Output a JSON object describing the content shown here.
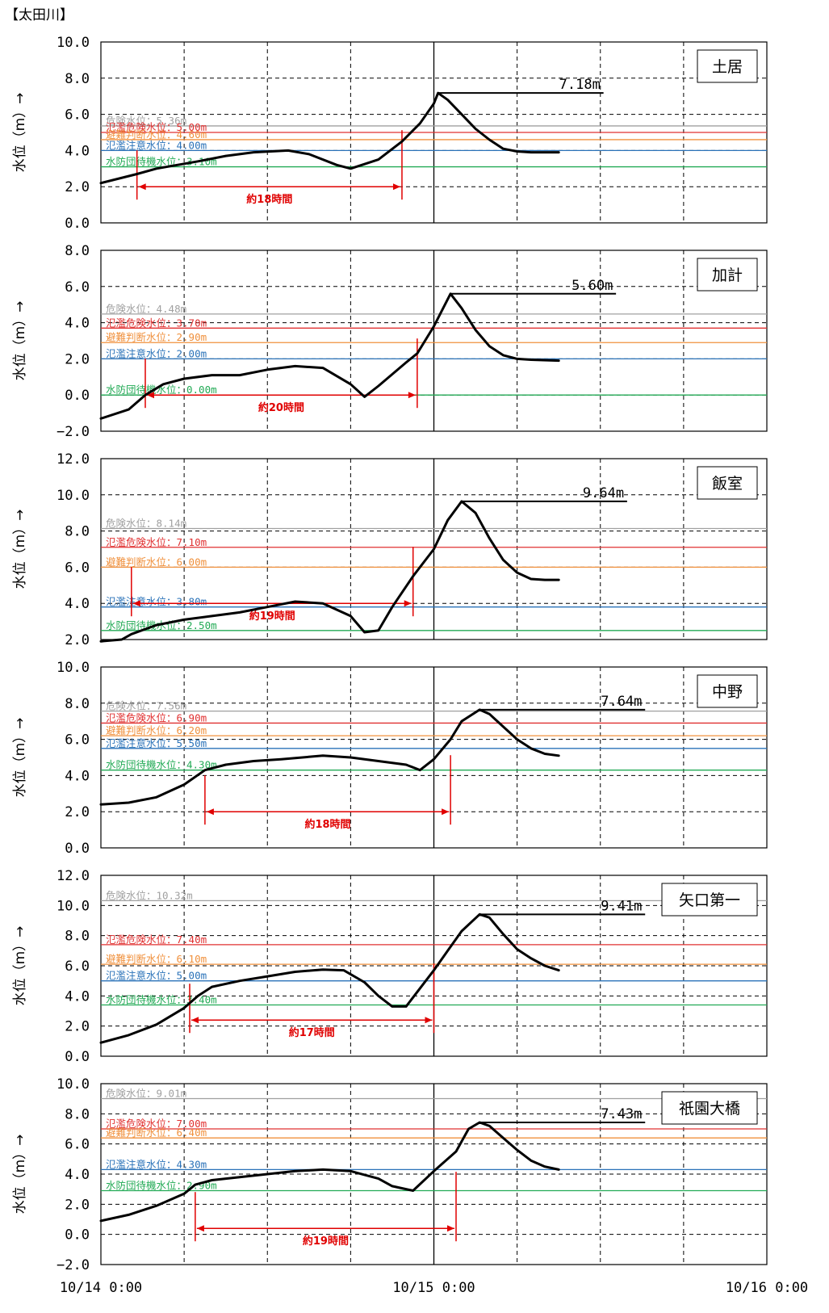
{
  "title": "【太田川】",
  "chart_data": [
    {
      "type": "line",
      "station": "土居",
      "ylabel": "水位（m）→",
      "ylim": [
        0,
        10
      ],
      "yticks": [
        "0.0",
        "2.0",
        "4.0",
        "6.0",
        "8.0",
        "10.0"
      ],
      "x_range_hours": [
        0,
        48
      ],
      "thresholds": [
        {
          "label": "危険水位：5.36m",
          "value": 5.36,
          "color": "#a0a0a0"
        },
        {
          "label": "氾濫危険水位：5.00m",
          "value": 5.0,
          "color": "#e03030"
        },
        {
          "label": "避難判断水位：4.60m",
          "value": 4.6,
          "color": "#f0903c"
        },
        {
          "label": "氾濫注意水位：4.00m",
          "value": 4.0,
          "color": "#2a72b8"
        },
        {
          "label": "水防団待機水位：3.10m",
          "value": 3.1,
          "color": "#22aa55"
        }
      ],
      "peak": {
        "label": "7.18m",
        "value": 7.18,
        "hour": 24.3
      },
      "duration": {
        "label": "約18時間",
        "start": 2.6,
        "end": 21.7
      },
      "series": [
        {
          "x": [
            0,
            2.6,
            4,
            7,
            9,
            11,
            13.5,
            15,
            17,
            18,
            20,
            21.7,
            23,
            24,
            24.3,
            25,
            26,
            27,
            28,
            29,
            30,
            31,
            33
          ],
          "y": [
            2.2,
            2.7,
            3.0,
            3.4,
            3.7,
            3.9,
            4.0,
            3.8,
            3.2,
            3.0,
            3.5,
            4.5,
            5.5,
            6.6,
            7.18,
            6.8,
            6.0,
            5.2,
            4.6,
            4.1,
            3.95,
            3.9,
            3.9
          ]
        }
      ]
    },
    {
      "type": "line",
      "station": "加計",
      "ylabel": "水位（m）→",
      "ylim": [
        -2,
        8
      ],
      "yticks": [
        "−2.0",
        "0.0",
        "2.0",
        "4.0",
        "6.0",
        "8.0"
      ],
      "x_range_hours": [
        0,
        48
      ],
      "thresholds": [
        {
          "label": "危険水位：4.48m",
          "value": 4.48,
          "color": "#a0a0a0"
        },
        {
          "label": "氾濫危険水位：3.70m",
          "value": 3.7,
          "color": "#e03030"
        },
        {
          "label": "避難判断水位：2.90m",
          "value": 2.9,
          "color": "#f0903c"
        },
        {
          "label": "氾濫注意水位：2.00m",
          "value": 2.0,
          "color": "#2a72b8"
        },
        {
          "label": "水防団待機水位：0.00m",
          "value": 0.0,
          "color": "#22aa55"
        }
      ],
      "peak": {
        "label": "5.60m",
        "value": 5.6,
        "hour": 25.2
      },
      "duration": {
        "label": "約20時間",
        "start": 3.2,
        "end": 22.8
      },
      "series": [
        {
          "x": [
            0,
            2,
            3.2,
            4.5,
            6,
            8,
            10,
            12,
            14,
            16,
            18,
            19,
            20,
            22,
            22.8,
            24,
            25.2,
            26,
            27,
            28,
            29,
            30,
            31,
            33
          ],
          "y": [
            -1.3,
            -0.8,
            0.0,
            0.6,
            0.9,
            1.1,
            1.1,
            1.4,
            1.6,
            1.5,
            0.6,
            -0.1,
            0.5,
            1.8,
            2.3,
            3.8,
            5.6,
            4.8,
            3.6,
            2.7,
            2.2,
            2.0,
            1.95,
            1.9
          ]
        }
      ]
    },
    {
      "type": "line",
      "station": "飯室",
      "ylabel": "水位（m）→",
      "ylim": [
        2,
        12
      ],
      "yticks": [
        "2.0",
        "4.0",
        "6.0",
        "8.0",
        "10.0",
        "12.0"
      ],
      "x_range_hours": [
        0,
        48
      ],
      "thresholds": [
        {
          "label": "危険水位：8.14m",
          "value": 8.14,
          "color": "#a0a0a0"
        },
        {
          "label": "氾濫危険水位：7.10m",
          "value": 7.1,
          "color": "#e03030"
        },
        {
          "label": "避難判断水位：6.00m",
          "value": 6.0,
          "color": "#f0903c"
        },
        {
          "label": "氾濫注意水位：3.80m",
          "value": 3.8,
          "color": "#2a72b8"
        },
        {
          "label": "水防団待機水位：2.50m",
          "value": 2.5,
          "color": "#22aa55"
        }
      ],
      "peak": {
        "label": "9.64m",
        "value": 9.64,
        "hour": 26.0
      },
      "duration": {
        "label": "約19時間",
        "start": 2.2,
        "end": 22.5
      },
      "series": [
        {
          "x": [
            0,
            1.5,
            2.2,
            4,
            6,
            8,
            10,
            12,
            14,
            16,
            18,
            19,
            20,
            21,
            22.5,
            24,
            25,
            26,
            27,
            28,
            29,
            30,
            31,
            32,
            33
          ],
          "y": [
            1.9,
            2.0,
            2.3,
            2.8,
            3.1,
            3.3,
            3.5,
            3.8,
            4.1,
            4.0,
            3.3,
            2.4,
            2.5,
            3.8,
            5.5,
            7.0,
            8.6,
            9.64,
            9.0,
            7.6,
            6.4,
            5.7,
            5.35,
            5.3,
            5.3
          ]
        }
      ]
    },
    {
      "type": "line",
      "station": "中野",
      "ylabel": "水位（m）→",
      "ylim": [
        0,
        10
      ],
      "yticks": [
        "0.0",
        "2.0",
        "4.0",
        "6.0",
        "8.0",
        "10.0"
      ],
      "x_range_hours": [
        0,
        48
      ],
      "thresholds": [
        {
          "label": "危険水位：7.56m",
          "value": 7.56,
          "color": "#a0a0a0"
        },
        {
          "label": "氾濫危険水位：6.90m",
          "value": 6.9,
          "color": "#e03030"
        },
        {
          "label": "避難判断水位：6.20m",
          "value": 6.2,
          "color": "#f0903c"
        },
        {
          "label": "氾濫注意水位：5.50m",
          "value": 5.5,
          "color": "#2a72b8"
        },
        {
          "label": "水防団待機水位：4.30m",
          "value": 4.3,
          "color": "#22aa55"
        }
      ],
      "peak": {
        "label": "7.64m",
        "value": 7.64,
        "hour": 27.3
      },
      "duration": {
        "label": "約18時間",
        "start": 7.5,
        "end": 25.2
      },
      "series": [
        {
          "x": [
            0,
            2,
            4,
            6,
            7.5,
            9,
            11,
            13,
            16,
            18,
            20,
            22,
            23,
            24,
            25.2,
            26,
            27.3,
            28,
            29,
            30,
            31,
            32,
            33
          ],
          "y": [
            2.4,
            2.5,
            2.8,
            3.5,
            4.3,
            4.6,
            4.8,
            4.9,
            5.1,
            5.0,
            4.8,
            4.6,
            4.3,
            4.9,
            6.0,
            7.0,
            7.64,
            7.4,
            6.7,
            6.0,
            5.5,
            5.2,
            5.1
          ]
        }
      ]
    },
    {
      "type": "line",
      "station": "矢口第一",
      "ylabel": "水位（m）→",
      "ylim": [
        0,
        12
      ],
      "yticks": [
        "0.0",
        "2.0",
        "4.0",
        "6.0",
        "8.0",
        "10.0",
        "12.0"
      ],
      "x_range_hours": [
        0,
        48
      ],
      "thresholds": [
        {
          "label": "危険水位：10.32m",
          "value": 10.32,
          "color": "#a0a0a0"
        },
        {
          "label": "氾濫危険水位：7.40m",
          "value": 7.4,
          "color": "#e03030"
        },
        {
          "label": "避難判断水位：6.10m",
          "value": 6.1,
          "color": "#f0903c"
        },
        {
          "label": "氾濫注意水位：5.00m",
          "value": 5.0,
          "color": "#2a72b8"
        },
        {
          "label": "水防団待機水位：3.40m",
          "value": 3.4,
          "color": "#22aa55"
        }
      ],
      "peak": {
        "label": "9.41m",
        "value": 9.41,
        "hour": 27.3
      },
      "duration": {
        "label": "約17時間",
        "start": 6.4,
        "end": 24.0
      },
      "series": [
        {
          "x": [
            0,
            2,
            4,
            6,
            7,
            8,
            10,
            12,
            14,
            16,
            17.5,
            19,
            20,
            21,
            22,
            24,
            25,
            26,
            27.3,
            28,
            29,
            30,
            31,
            32,
            33
          ],
          "y": [
            0.9,
            1.4,
            2.1,
            3.2,
            4.0,
            4.6,
            5.0,
            5.3,
            5.6,
            5.75,
            5.7,
            4.9,
            4.0,
            3.3,
            3.3,
            5.7,
            7.0,
            8.3,
            9.41,
            9.2,
            8.1,
            7.1,
            6.5,
            6.0,
            5.7
          ]
        }
      ]
    },
    {
      "type": "line",
      "station": "祇園大橋",
      "ylabel": "水位（m）→",
      "ylim": [
        -2,
        10
      ],
      "yticks": [
        "−2.0",
        "0.0",
        "2.0",
        "4.0",
        "6.0",
        "8.0",
        "10.0"
      ],
      "x_range_hours": [
        0,
        48
      ],
      "thresholds": [
        {
          "label": "危険水位：9.01m",
          "value": 9.01,
          "color": "#a0a0a0"
        },
        {
          "label": "氾濫危険水位：7.00m",
          "value": 7.0,
          "color": "#e03030"
        },
        {
          "label": "避難判断水位：6.40m",
          "value": 6.4,
          "color": "#f0903c"
        },
        {
          "label": "氾濫注意水位：4.30m",
          "value": 4.3,
          "color": "#2a72b8"
        },
        {
          "label": "水防団待機水位：2.90m",
          "value": 2.9,
          "color": "#22aa55"
        }
      ],
      "peak": {
        "label": "7.43m",
        "value": 7.43,
        "hour": 27.3
      },
      "duration": {
        "label": "約19時間",
        "start": 6.8,
        "end": 25.6
      },
      "series": [
        {
          "x": [
            0,
            2,
            4,
            6,
            6.8,
            8,
            10,
            12,
            14,
            16,
            18,
            20,
            21,
            22.5,
            24,
            25.6,
            26.5,
            27.3,
            28,
            29,
            30,
            31,
            32,
            33
          ],
          "y": [
            0.9,
            1.3,
            1.9,
            2.7,
            3.3,
            3.6,
            3.8,
            4.0,
            4.2,
            4.3,
            4.2,
            3.7,
            3.2,
            2.9,
            4.2,
            5.5,
            7.0,
            7.43,
            7.2,
            6.4,
            5.6,
            4.9,
            4.5,
            4.3
          ]
        }
      ]
    }
  ],
  "x_axis": {
    "labels": [
      "10/14 0:00",
      "10/15 0:00",
      "10/16 0:00"
    ],
    "hours": [
      0,
      24,
      48
    ]
  }
}
